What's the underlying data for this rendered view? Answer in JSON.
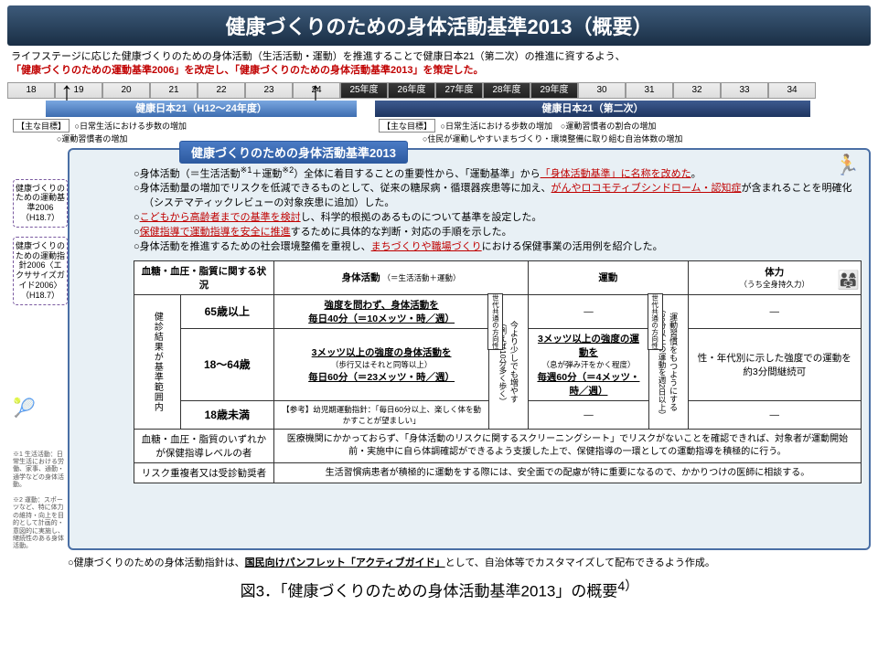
{
  "title": "健康づくりのための身体活動基準2013（概要）",
  "intro_a": "ライフステージに応じた健康づくりのための身体活動（生活活動・運動）を推進することで健康日本21（第二次）の推進に資するよう、",
  "intro_b": "「健康づくりのための運動基準2006」を改定し、「健康づくりのための身体活動基準2013」を策定した。",
  "timeline": {
    "cells": [
      "18",
      "19",
      "20",
      "21",
      "22",
      "23",
      "24",
      "25年度",
      "26年度",
      "27年度",
      "28年度",
      "29年度",
      "30",
      "31",
      "32",
      "33",
      "34"
    ],
    "dark_from": 7,
    "dark_to": 11,
    "bar1": "健康日本21（H12～24年度）",
    "bar2": "健康日本21（第二次）",
    "goals1_label": "【主な目標】",
    "goals1a": "○日常生活における歩数の増加",
    "goals1b": "○運動習慣者の増加",
    "goals2_label": "【主な目標】",
    "goals2a": "○日常生活における歩数の増加　○運動習慣者の割合の増加",
    "goals2b": "○住民が運動しやすいまちづくり・環境整備に取り組む自治体数の増加"
  },
  "section_tag": "健康づくりのための身体活動基準2013",
  "side1": "健康づくりのための運動基準2006（H18.7）",
  "side2": "健康づくりのための運動指針2006〈エクササイズガイド2006〉（H18.7）",
  "note1": "※1 生活活動：日常生活における労働、家事、通勤・通学などの身体活動。",
  "note2": "※2 運動：スポーツなど、特に体力の維持・向上を目的として計画的・意図的に実施し、継続性のある身体活動。",
  "bullets": [
    "○身体活動（＝生活活動<sup>※1</sup>＋運動<sup>※2</sup>）全体に着目することの重要性から、「運動基準」から<span class='ul-red'>「身体活動基準」に名称を改めた</span>。",
    "○身体活動量の増加でリスクを低減できるものとして、従来の糖尿病・循環器疾患等に加え、<span class='ul-red'>がんやロコモティブシンドローム・認知症</span>が含まれることを明確化（システマティックレビューの対象疾患に追加）した。",
    "○<span class='ul-red'>こどもから高齢者までの基準を検討</span>し、科学的根拠のあるものについて基準を設定した。",
    "○<span class='ul-red'>保健指導で運動指導を安全に推進</span>するために具体的な判断・対応の手順を示した。",
    "○身体活動を推進するための社会環境整備を重視し、<span class='ul-red'>まちづくりや職場づくり</span>における保健事業の活用例を紹介した。"
  ],
  "table": {
    "h1": "血糖・血圧・脂質に関する状況",
    "h2": "身体活動",
    "h2s": "（＝生活活動＋運動）",
    "h3": "運動",
    "h4": "体力",
    "h4s": "（うち全身持久力）",
    "vside": "健診結果が基準範囲内",
    "r1_label": "65歳以上",
    "r1_pa": "<span class='u'>強度を問わず、身体活動を</span><br><span class='u'>毎日40分（＝10メッツ・時／週）</span>",
    "r2_label": "18～64歳",
    "r2_pa": "<span class='u'>3メッツ以上の強度の身体活動を</span><br><span class='small'>（歩行又はそれと同等以上）</span><br><span class='u'>毎日60分（＝23メッツ・時／週）</span>",
    "r2_ex": "<span class='u'>3メッツ以上の強度の運動を</span><br><span class='small'>（息が弾み汗をかく程度）</span><br><span class='u'>毎週60分（＝4メッツ・時／週）</span>",
    "r2_fit": "性・年代別に示した強度での運動を約3分間継続可",
    "r3_label": "18歳未満",
    "r3_pa": "<span class='small'>【参考】幼児期運動指針：「毎日60分以上、楽しく体を動かすことが望ましい」</span>",
    "mid_arrow": "今より少しでも増やす<br><span class='small'>（例えば10分多く歩く）</span>",
    "ex_arrow": "運動習慣をもつようにする<br><span class='small'>（30分以上の運動を週2日以上）</span>",
    "badge": "世代共通の方向性",
    "r4_label": "血糖・血圧・脂質のいずれかが保健指導レベルの者",
    "r4_text": "医療機関にかかっておらず、「身体活動のリスクに関するスクリーニングシート」でリスクがないことを確認できれば、対象者が運動開始前・実施中に自ら体調確認ができるよう支援した上で、保健指導の一環としての運動指導を積極的に行う。",
    "r5_label": "リスク重複者又は受診勧奨者",
    "r5_text": "生活習慣病患者が積極的に運動をする際には、安全面での配慮が特に重要になるので、かかりつけの医師に相談する。"
  },
  "foot": "○健康づくりのための身体活動指針は、<span class='u'>国民向けパンフレット「アクティブガイド」</span>として、自治体等でカスタマイズして配布できるよう作成。",
  "figcap": "図3．「健康づくりのための身体活動基準2013」の概要<sup>4）</sup>"
}
